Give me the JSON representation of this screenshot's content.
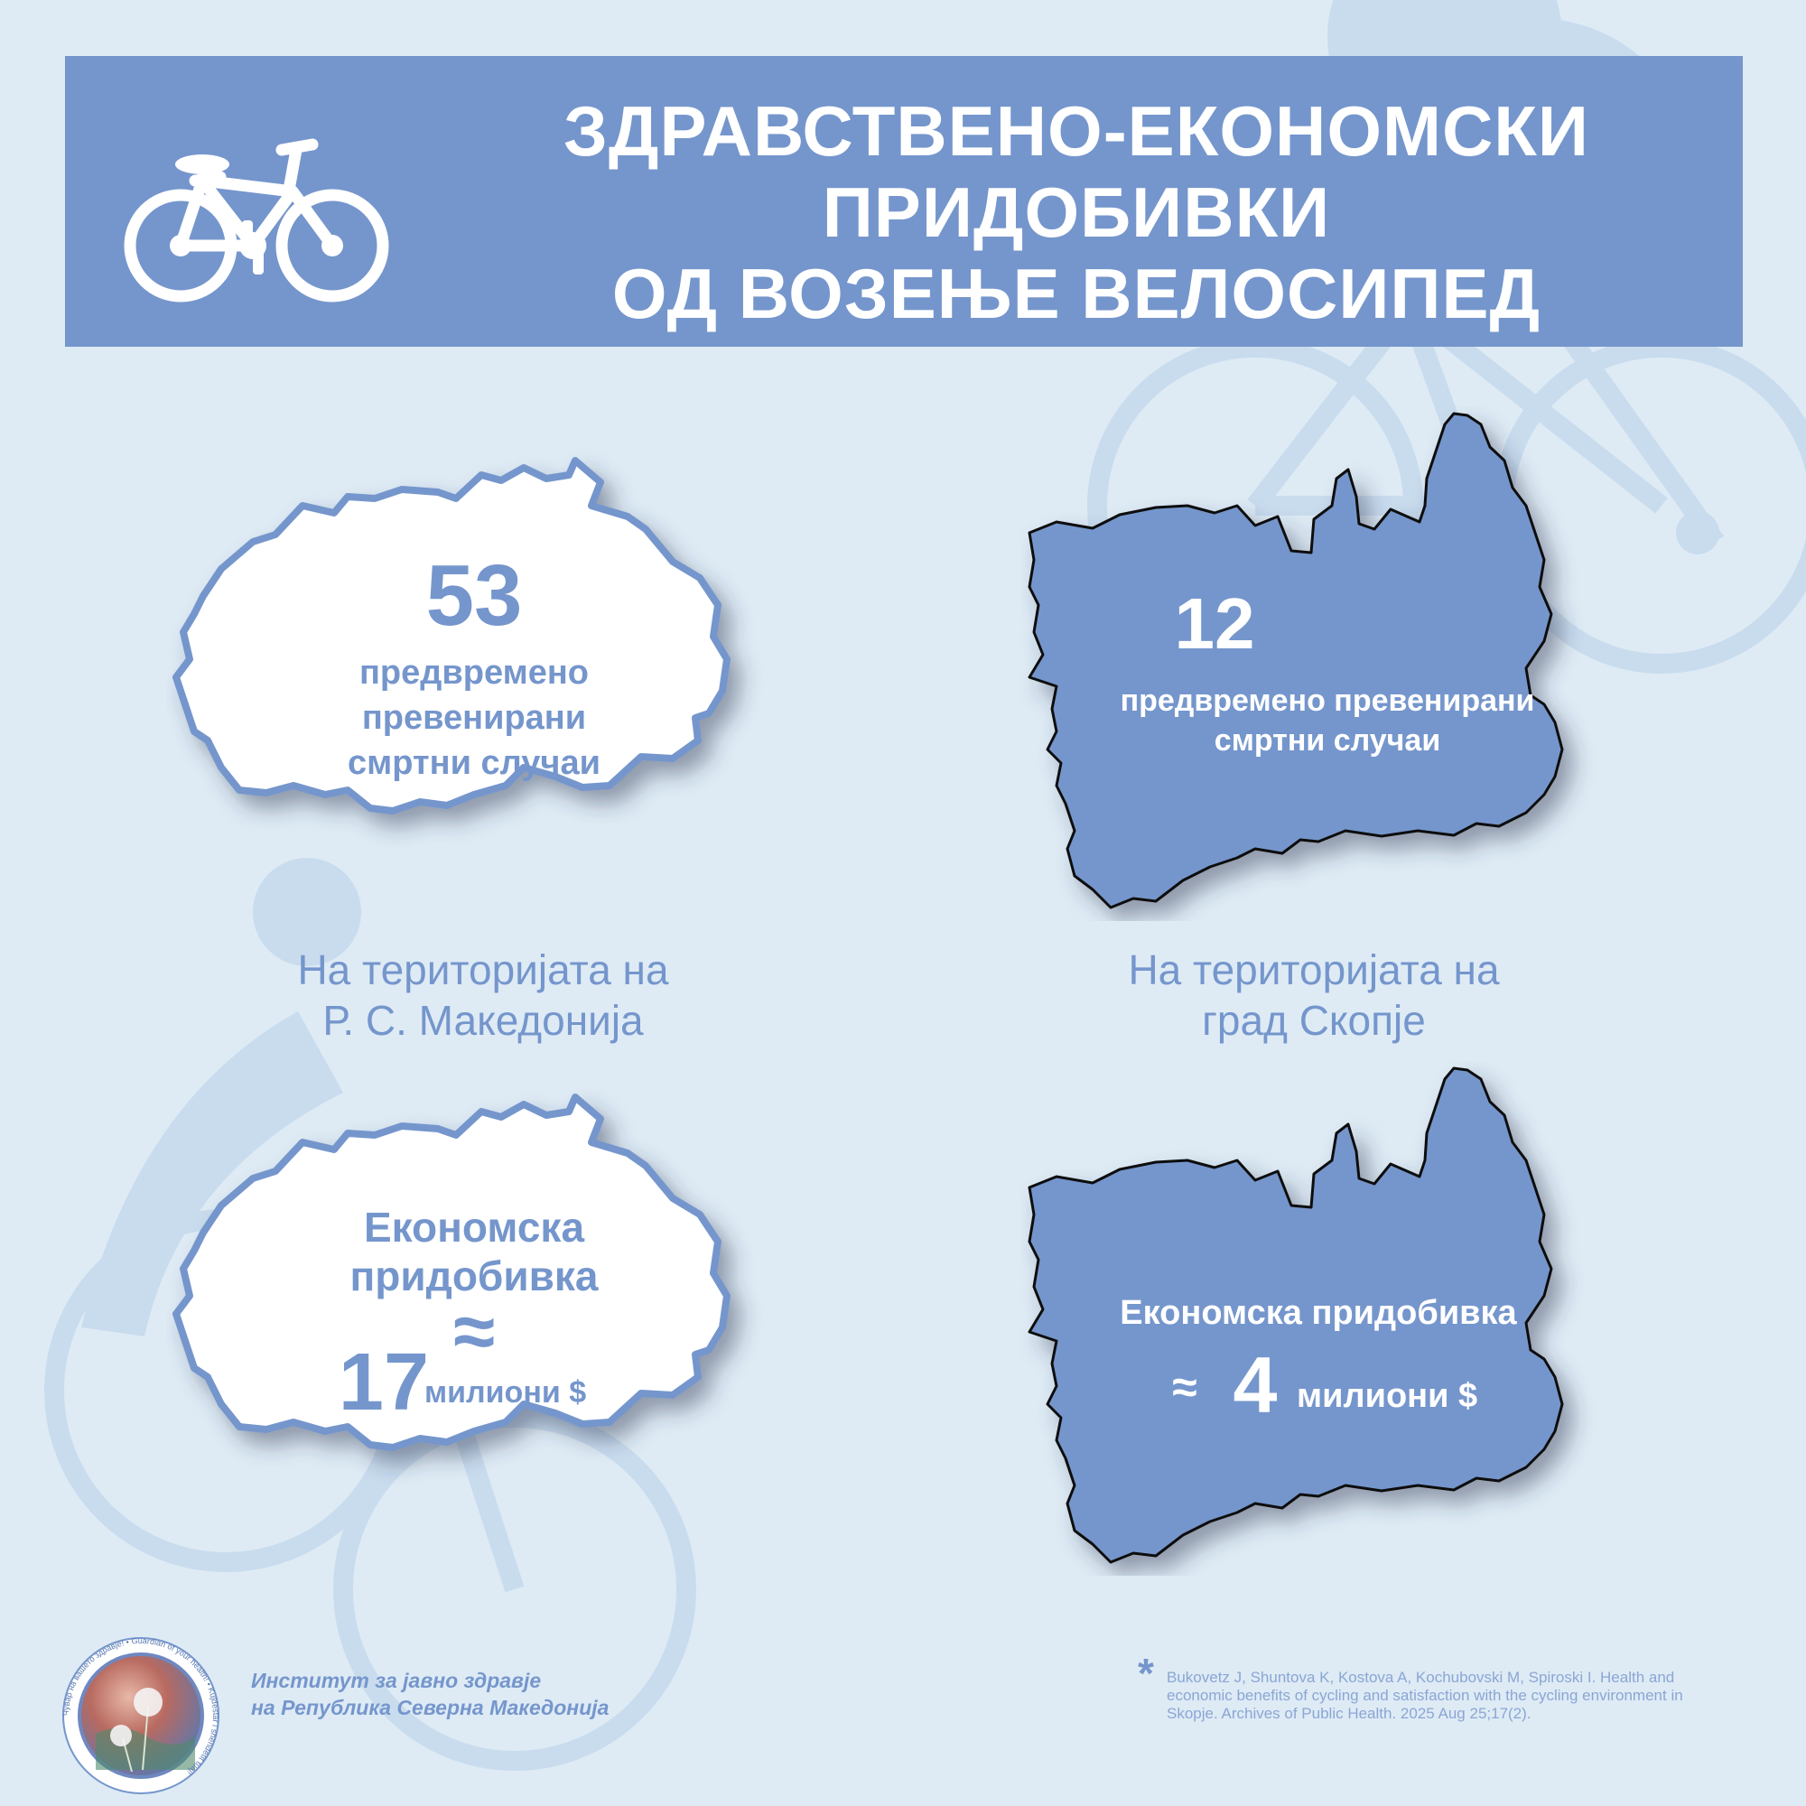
{
  "header": {
    "title_lines": [
      "ЗДРАВСТВЕНО-ЕКОНОМСКИ",
      "ПРИДОБИВКИ",
      "ОД ВОЗЕЊЕ ВЕЛОСИПЕД"
    ],
    "icon": "bicycle-icon"
  },
  "macedonia": {
    "deaths": {
      "number": "53",
      "label_lines": [
        "предвремено",
        "превенирани",
        "смртни случаи"
      ]
    },
    "caption_lines": [
      "На територијата на",
      "Р. С. Македонија"
    ],
    "economic": {
      "label_lines": [
        "Економска",
        "придобивка"
      ],
      "approx": "≈",
      "number": "17",
      "unit": "милиони $"
    }
  },
  "skopje": {
    "deaths": {
      "number": "12",
      "label_lines": [
        "предвремено превенирани",
        "смртни случаи"
      ]
    },
    "caption_lines": [
      "На територијата на",
      "град Скопје"
    ],
    "economic": {
      "label": "Економска придобивка",
      "approx": "≈",
      "number": "4",
      "unit": "милиони $"
    }
  },
  "footer": {
    "institute_lines": [
      "Институт за јавно здравје",
      "на Република Северна Македонија"
    ],
    "logo_ring_text": "Чувар на вашето здравје! • Guardian of your health! • Kujdestar i shëndetit tuaj!",
    "reference_marker": "*",
    "reference": "Bukovetz J, Shuntova K, Kostova A, Kochubovski M, Spiroski I. Health and economic benefits of cycling and satisfaction with the cycling environment in Skopje. Archives of Public Health. 2025 Aug 25;17(2)."
  },
  "colors": {
    "background": "#deebf5",
    "accent": "#7596cc",
    "watermark": "#c9dcee"
  }
}
